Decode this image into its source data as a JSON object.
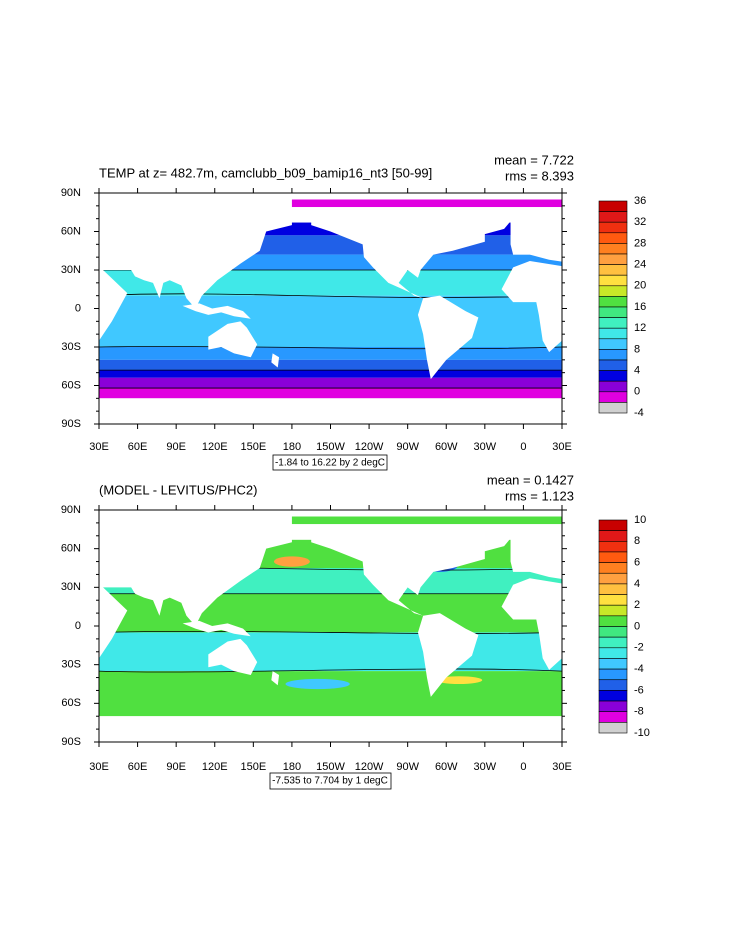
{
  "panels": [
    {
      "title": "TEMP at z= 482.7m, camclubb_b09_bamip16_nt3 [50-99]",
      "mean": "mean = 7.722",
      "rms": "rms = 8.393",
      "lat_labels": [
        "90N",
        "60N",
        "30N",
        "0",
        "30S",
        "60S",
        "90S"
      ],
      "lon_labels": [
        "30E",
        "60E",
        "90E",
        "120E",
        "150E",
        "180",
        "150W",
        "120W",
        "90W",
        "60W",
        "30W",
        "0",
        "30E"
      ],
      "contour_info": "-1.84 to 16.22 by 2 degC",
      "colorbar": {
        "labels": [
          36,
          32,
          28,
          24,
          20,
          16,
          12,
          8,
          4,
          0,
          -4
        ],
        "colors": [
          "#c80000",
          "#e01818",
          "#f03010",
          "#ff5a10",
          "#ff8020",
          "#ffa040",
          "#ffc040",
          "#ffe040",
          "#c8e828",
          "#50e040",
          "#40e880",
          "#40f0c0",
          "#40e8e8",
          "#40c8ff",
          "#2898ff",
          "#2060e8",
          "#0000e0",
          "#8a00d8",
          "#e000e0",
          "#d0d0d0"
        ]
      }
    },
    {
      "title": "(MODEL - LEVITUS/PHC2)",
      "mean": "mean = 0.1427",
      "rms": "rms = 1.123",
      "lat_labels": [
        "90N",
        "60N",
        "30N",
        "0",
        "30S",
        "60S",
        "90S"
      ],
      "lon_labels": [
        "30E",
        "60E",
        "90E",
        "120E",
        "150E",
        "180",
        "150W",
        "120W",
        "90W",
        "60W",
        "30W",
        "0",
        "30E"
      ],
      "contour_info": "-7.535 to 7.704 by 1 degC",
      "colorbar": {
        "labels": [
          10,
          8,
          6,
          4,
          2,
          0,
          -2,
          -4,
          -6,
          -8,
          -10
        ],
        "colors": [
          "#c80000",
          "#e01818",
          "#f03010",
          "#ff5a10",
          "#ff8020",
          "#ffa040",
          "#ffc040",
          "#ffe040",
          "#c8e828",
          "#50e040",
          "#40e880",
          "#40f0c0",
          "#40e8e8",
          "#40c8ff",
          "#2898ff",
          "#2060e8",
          "#0000e0",
          "#8a00d8",
          "#e000e0",
          "#d0d0d0"
        ]
      }
    }
  ]
}
